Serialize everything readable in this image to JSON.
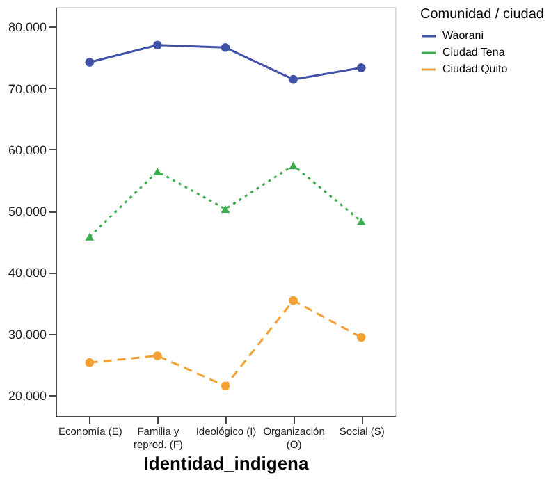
{
  "chart_data": {
    "type": "line",
    "categories": [
      "Economía (E)",
      "Familia y\nreprod. (F)",
      "Ideológico (I)",
      "Organización\n(O)",
      "Social (S)"
    ],
    "series": [
      {
        "name": "Waorani",
        "color": "#3f51a8",
        "values": [
          74200,
          77000,
          76600,
          71400,
          73300
        ],
        "marker": "circle",
        "line_style": "solid"
      },
      {
        "name": "Ciudad Tena",
        "color": "#3cae4c",
        "values": [
          45800,
          56400,
          50300,
          57400,
          48300
        ],
        "marker": "triangle",
        "line_style": "dotted"
      },
      {
        "name": "Ciudad Quito",
        "color": "#f4a033",
        "values": [
          25300,
          26400,
          21500,
          35400,
          29400
        ],
        "marker": "circle",
        "line_style": "dashed"
      }
    ],
    "xlabel": "Identidad_indigena",
    "legend_title": "Comunidad / ciudad",
    "legend": "top right",
    "ylim": [
      16600,
      83200
    ],
    "yticks": [
      {
        "value": 20000,
        "label": "20,000"
      },
      {
        "value": 30000,
        "label": "30,000"
      },
      {
        "value": 40000,
        "label": "40,000"
      },
      {
        "value": 50000,
        "label": "50,000"
      },
      {
        "value": 60000,
        "label": "60,000"
      },
      {
        "value": 70000,
        "label": "70,000"
      },
      {
        "value": 80000,
        "label": "80,000"
      }
    ],
    "grid": false
  }
}
